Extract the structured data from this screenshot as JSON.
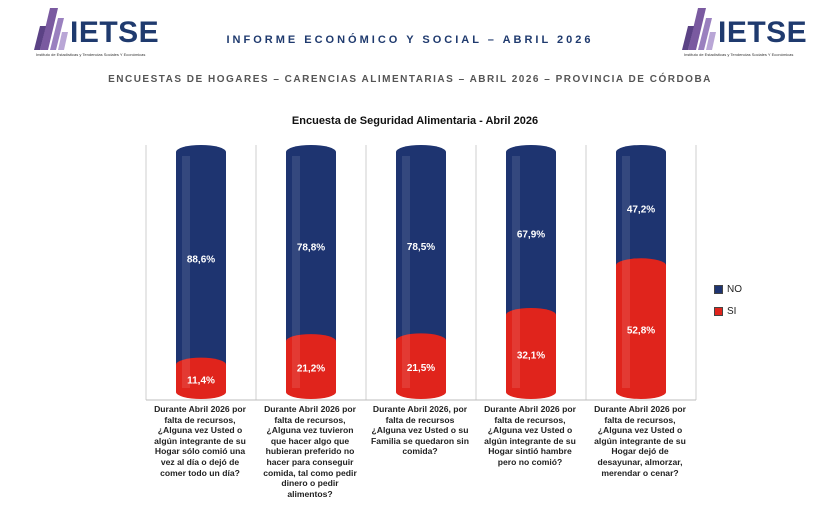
{
  "header": {
    "logo_text": "IETSE",
    "logo_subtitle": "Instituto de Estadísticas y Tendencias Sociales Y Económicas",
    "report_title": "INFORME ECONÓMICO Y SOCIAL – ABRIL 2026",
    "subtitle": "ENCUESTAS DE HOGARES – CARENCIAS ALIMENTARIAS – ABRIL 2026 – PROVINCIA DE CÓRDOBA"
  },
  "colors": {
    "no": "#1e3470",
    "si": "#e0241c",
    "brand": "#1f3a6e",
    "logo_stripe": "#7a5aa0"
  },
  "chart_data": {
    "type": "bar",
    "stacked": true,
    "title": "Encuesta de Seguridad Alimentaria - Abril 2026",
    "categories": [
      "Durante Abril 2026 por falta de recursos, ¿Alguna vez Usted o algún integrante de su Hogar sólo comió una vez al día o dejó de comer todo un día?",
      "Durante Abril 2026 por falta de recursos, ¿Alguna vez tuvieron que hacer algo que hubieran preferido no hacer para conseguir comida, tal como pedir dinero o pedir alimentos?",
      "Durante Abril 2026, por falta de recursos ¿Alguna vez Usted o su Familia se quedaron sin comida?",
      "Durante Abril 2026 por falta de recursos, ¿Alguna vez Usted o algún integrante de su Hogar sintió hambre pero no comió?",
      "Durante Abril 2026 por falta de recursos, ¿Alguna vez Usted o algún integrante de su Hogar dejó de desayunar, almorzar, merendar o cenar?"
    ],
    "series": [
      {
        "name": "NO",
        "values": [
          88.6,
          78.8,
          78.5,
          67.9,
          47.2
        ],
        "labels": [
          "88,6%",
          "78,8%",
          "78,5%",
          "67,9%",
          "47,2%"
        ]
      },
      {
        "name": "SI",
        "values": [
          11.4,
          21.2,
          21.5,
          32.1,
          52.8
        ],
        "labels": [
          "11,4%",
          "21,2%",
          "21,5%",
          "32,1%",
          "52,8%"
        ]
      }
    ],
    "ylim": [
      0,
      100
    ],
    "legend_position": "right",
    "grid": false
  }
}
